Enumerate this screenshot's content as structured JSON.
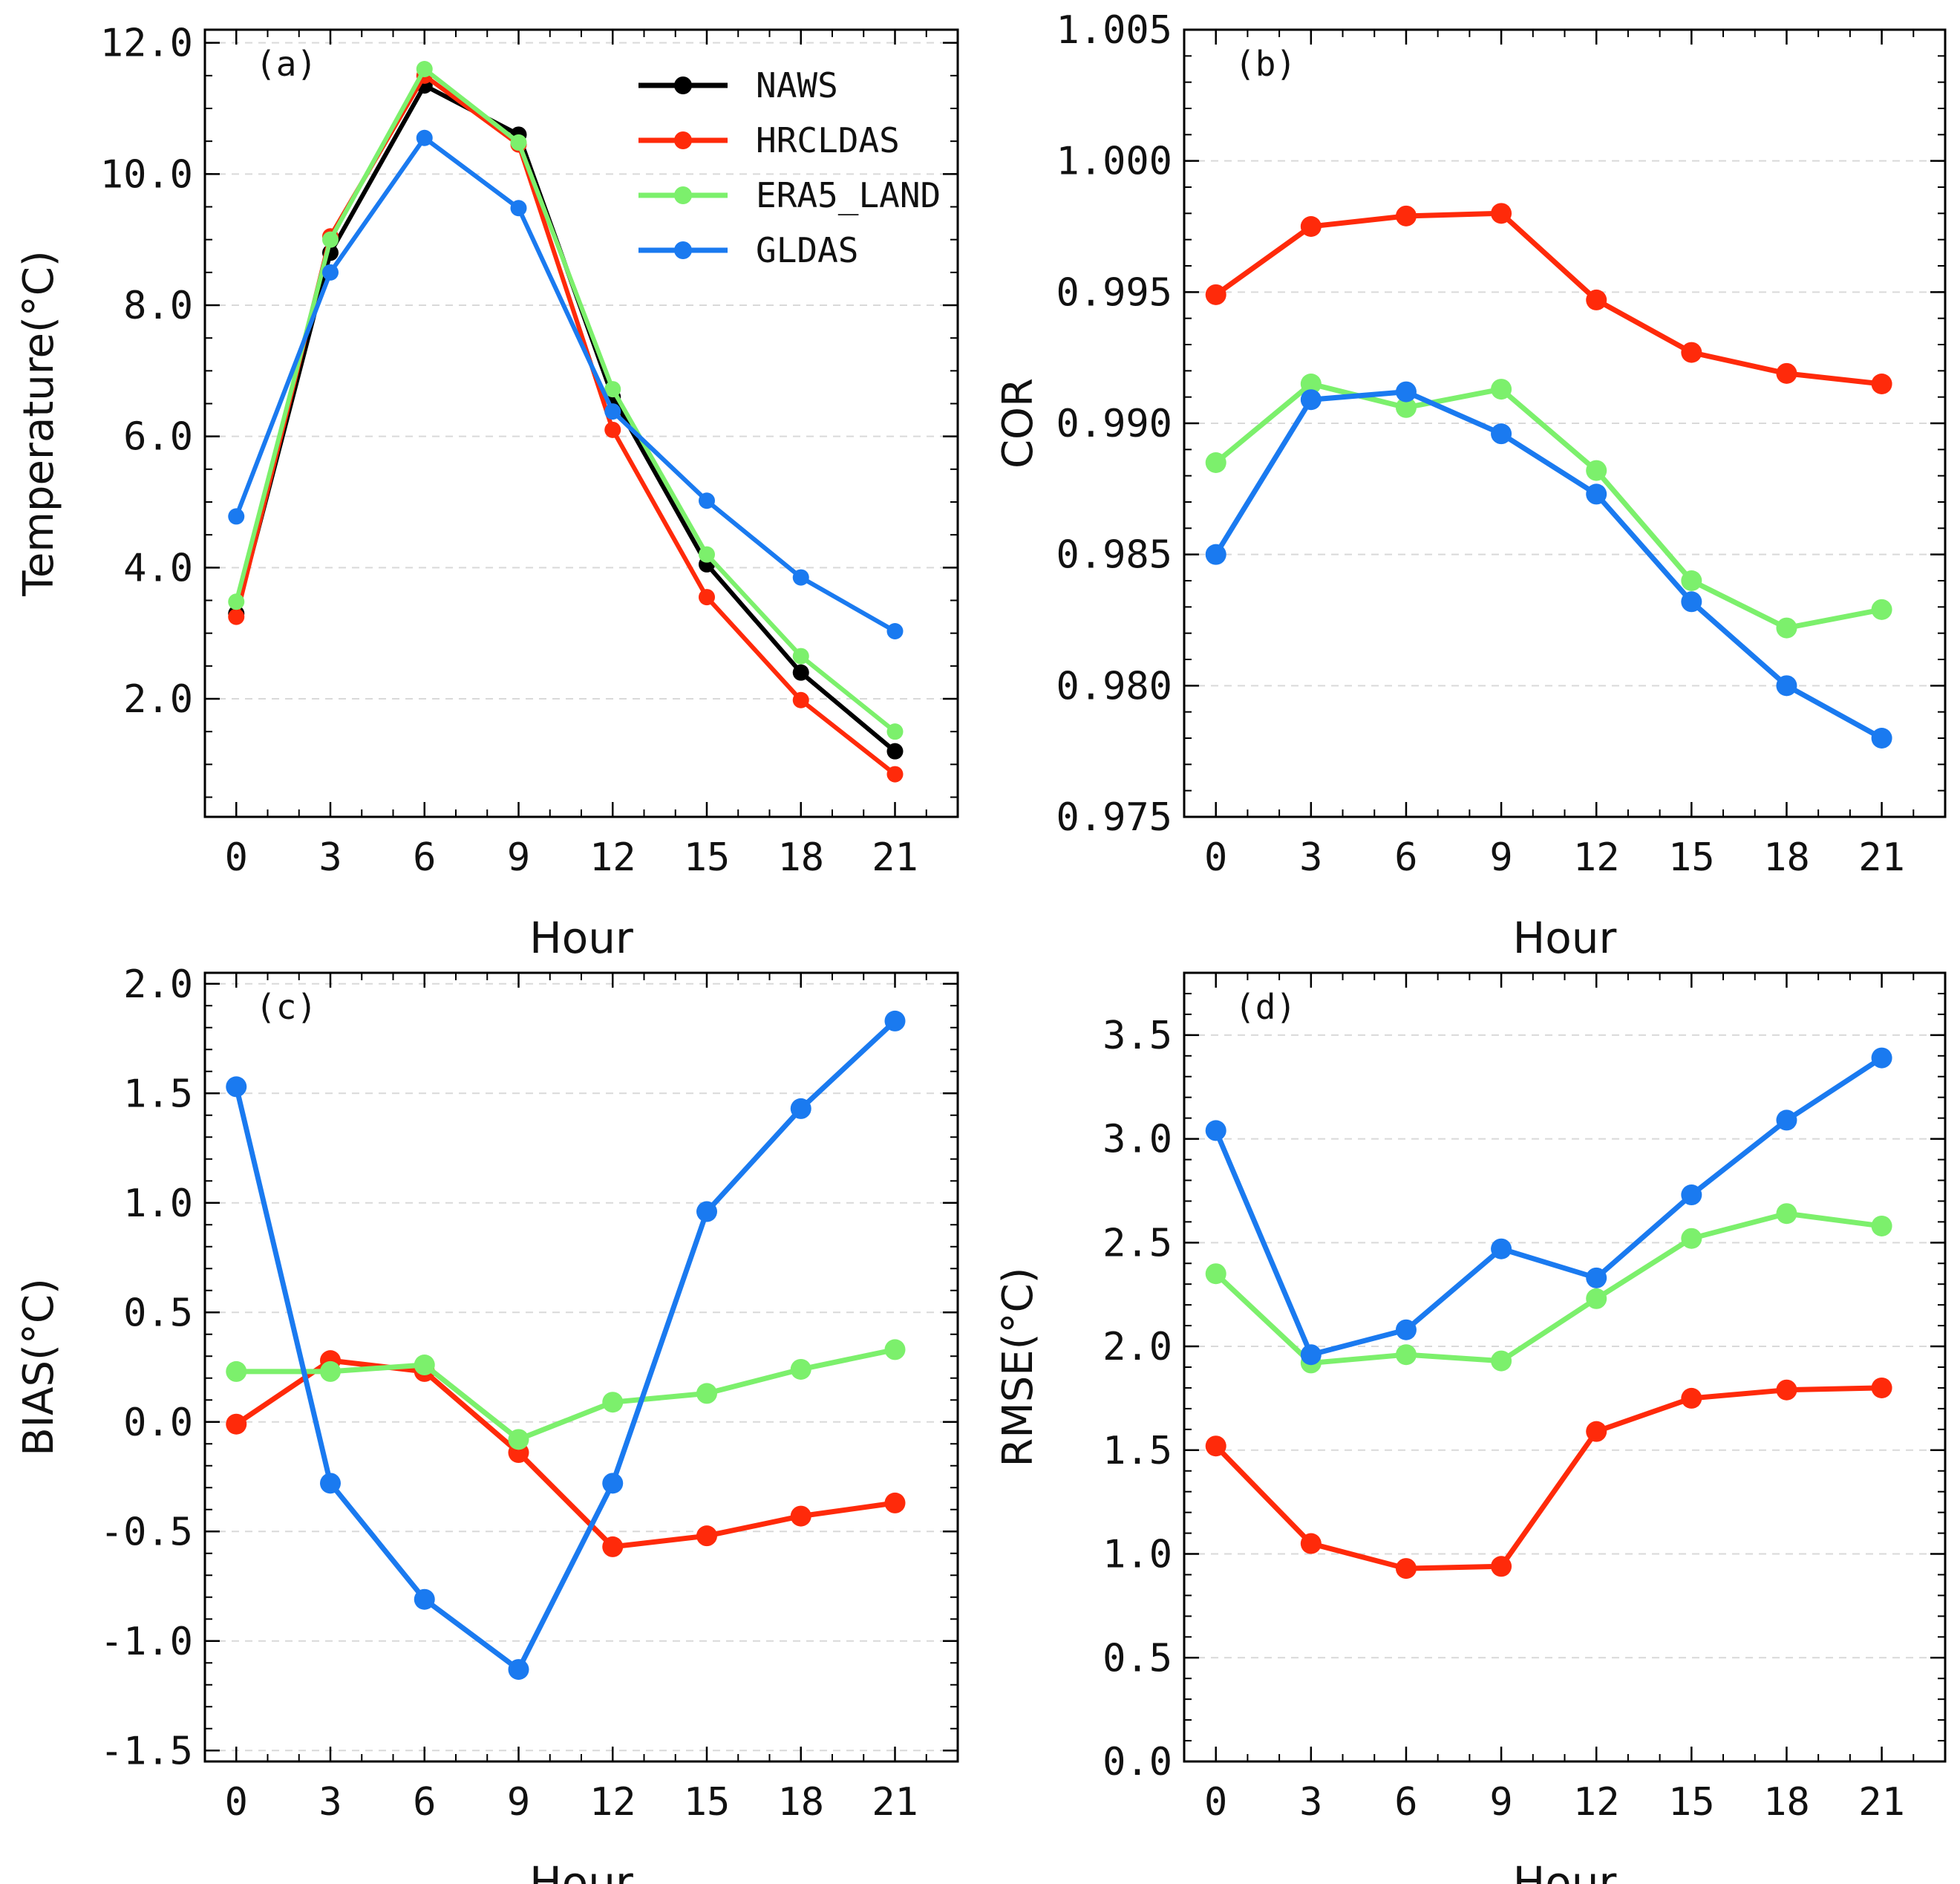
{
  "chart_data": [
    {
      "type": "line",
      "panel_label": "(a)",
      "xlabel": "Hour",
      "ylabel": "Temperature(°C)",
      "x": [
        0,
        3,
        6,
        9,
        12,
        15,
        18,
        21
      ],
      "xlim": [
        -1,
        23
      ],
      "ylim": [
        0.2,
        12.2
      ],
      "y_ticks": [
        "2.0",
        "4.0",
        "6.0",
        "8.0",
        "10.0",
        "12.0"
      ],
      "y_tick_values": [
        2,
        4,
        6,
        8,
        10,
        12
      ],
      "y_minor_step": 0.5,
      "grid": "horizontal dashed",
      "legend": "top-right",
      "series": [
        {
          "name": "NAWS",
          "color": "#000000",
          "values": [
            3.3,
            8.8,
            11.35,
            10.6,
            6.6,
            4.05,
            2.4,
            1.2
          ]
        },
        {
          "name": "HRCLDAS",
          "color": "#ff2a0a",
          "values": [
            3.25,
            9.05,
            11.5,
            10.45,
            6.1,
            3.55,
            1.98,
            0.85
          ]
        },
        {
          "name": "ERA5_LAND",
          "color": "#7cf06c",
          "values": [
            3.48,
            9.0,
            11.6,
            10.48,
            6.72,
            4.2,
            2.65,
            1.5
          ]
        },
        {
          "name": "GLDAS",
          "color": "#1a7af0",
          "values": [
            4.78,
            8.5,
            10.55,
            9.48,
            6.38,
            5.02,
            3.85,
            3.03
          ]
        }
      ]
    },
    {
      "type": "line",
      "panel_label": "(b)",
      "xlabel": "Hour",
      "ylabel": "COR",
      "x": [
        0,
        3,
        6,
        9,
        12,
        15,
        18,
        21
      ],
      "xlim": [
        -1,
        23
      ],
      "ylim": [
        0.975,
        1.005
      ],
      "y_ticks": [
        "0.975",
        "0.980",
        "0.985",
        "0.990",
        "0.995",
        "1.000",
        "1.005"
      ],
      "y_tick_values": [
        0.975,
        0.98,
        0.985,
        0.99,
        0.995,
        1.0,
        1.005
      ],
      "y_minor_step": 0.001,
      "grid": "horizontal dashed",
      "series": [
        {
          "name": "HRCLDAS",
          "color": "#ff2a0a",
          "values": [
            0.9949,
            0.9975,
            0.9979,
            0.998,
            0.9947,
            0.9927,
            0.9919,
            0.9915
          ]
        },
        {
          "name": "ERA5_LAND",
          "color": "#7cf06c",
          "values": [
            0.9885,
            0.9915,
            0.9906,
            0.9913,
            0.9882,
            0.984,
            0.9822,
            0.9829
          ]
        },
        {
          "name": "GLDAS",
          "color": "#1a7af0",
          "values": [
            0.985,
            0.9909,
            0.9912,
            0.9896,
            0.9873,
            0.9832,
            0.98,
            0.978
          ]
        }
      ]
    },
    {
      "type": "line",
      "panel_label": "(c)",
      "xlabel": "Hour",
      "ylabel": "BIAS(°C)",
      "x": [
        0,
        3,
        6,
        9,
        12,
        15,
        18,
        21
      ],
      "xlim": [
        -1,
        23
      ],
      "ylim": [
        -1.55,
        2.05
      ],
      "y_ticks": [
        "-1.5",
        "-1.0",
        "-0.5",
        "0.0",
        "0.5",
        "1.0",
        "1.5",
        "2.0"
      ],
      "y_tick_values": [
        -1.5,
        -1.0,
        -0.5,
        0.0,
        0.5,
        1.0,
        1.5,
        2.0
      ],
      "y_minor_step": 0.1,
      "grid": "horizontal dashed",
      "series": [
        {
          "name": "HRCLDAS",
          "color": "#ff2a0a",
          "values": [
            -0.01,
            0.28,
            0.23,
            -0.14,
            -0.57,
            -0.52,
            -0.43,
            -0.37
          ]
        },
        {
          "name": "ERA5_LAND",
          "color": "#7cf06c",
          "values": [
            0.23,
            0.23,
            0.26,
            -0.08,
            0.09,
            0.13,
            0.24,
            0.33
          ]
        },
        {
          "name": "GLDAS",
          "color": "#1a7af0",
          "values": [
            1.53,
            -0.28,
            -0.81,
            -1.13,
            -0.28,
            0.96,
            1.43,
            1.83
          ]
        }
      ]
    },
    {
      "type": "line",
      "panel_label": "(d)",
      "xlabel": "Hour",
      "ylabel": "RMSE(°C)",
      "x": [
        0,
        3,
        6,
        9,
        12,
        15,
        18,
        21
      ],
      "xlim": [
        -1,
        23
      ],
      "ylim": [
        0.0,
        3.8
      ],
      "y_ticks": [
        "0.0",
        "0.5",
        "1.0",
        "1.5",
        "2.0",
        "2.5",
        "3.0",
        "3.5"
      ],
      "y_tick_values": [
        0.0,
        0.5,
        1.0,
        1.5,
        2.0,
        2.5,
        3.0,
        3.5
      ],
      "y_minor_step": 0.1,
      "grid": "horizontal dashed",
      "series": [
        {
          "name": "HRCLDAS",
          "color": "#ff2a0a",
          "values": [
            1.52,
            1.05,
            0.93,
            0.94,
            1.59,
            1.75,
            1.79,
            1.8
          ]
        },
        {
          "name": "ERA5_LAND",
          "color": "#7cf06c",
          "values": [
            2.35,
            1.92,
            1.96,
            1.93,
            2.23,
            2.52,
            2.64,
            2.58
          ]
        },
        {
          "name": "GLDAS",
          "color": "#1a7af0",
          "values": [
            3.04,
            1.96,
            2.08,
            2.47,
            2.33,
            2.73,
            3.09,
            3.39
          ]
        }
      ]
    }
  ]
}
